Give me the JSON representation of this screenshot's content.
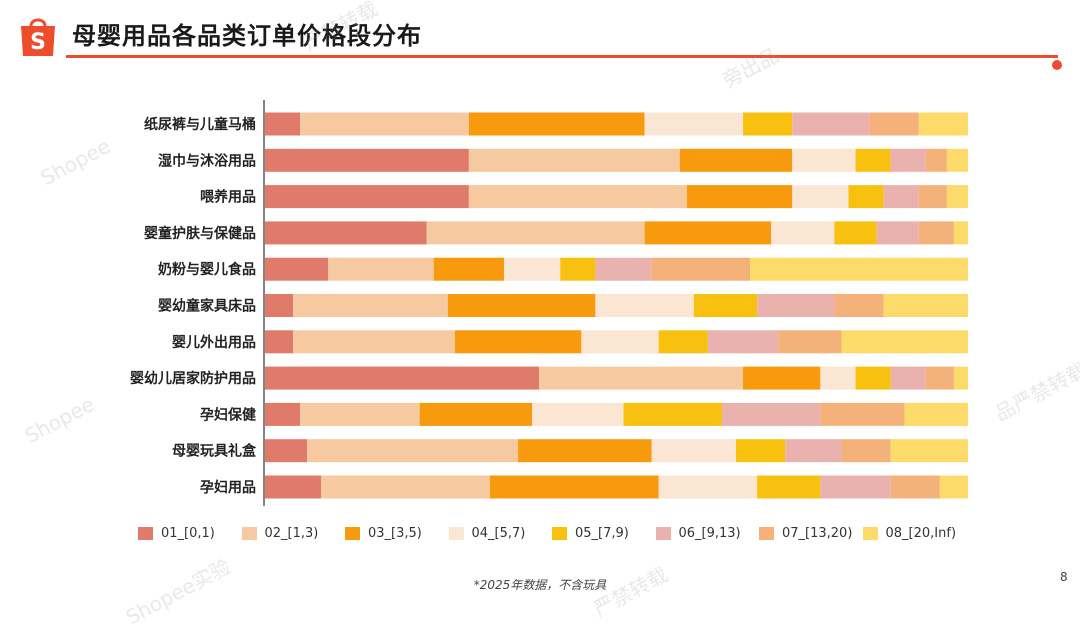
{
  "header": {
    "title": "母婴用品各品类订单价格段分布",
    "logo_icon": "shopee-bag-icon",
    "accent_color": "#ee4d2d"
  },
  "chart_data": {
    "type": "bar",
    "orientation": "horizontal",
    "stacked": true,
    "percent": true,
    "title": "母婴用品各品类订单价格段分布",
    "xlim": [
      0,
      100
    ],
    "ylabel": "",
    "xlabel": "",
    "legend_position": "bottom",
    "categories": [
      "纸尿裤与儿童马桶",
      "湿巾与沐浴用品",
      "喂养用品",
      "婴童护肤与保健品",
      "奶粉与婴儿食品",
      "婴幼童家具床品",
      "婴儿外出用品",
      "婴幼儿居家防护用品",
      "孕妇保健",
      "母婴玩具礼盒",
      "孕妇用品"
    ],
    "series": [
      {
        "name": "01_[0,1)",
        "color": "#e07a6a",
        "values": [
          5,
          29,
          29,
          23,
          9,
          4,
          4,
          39,
          5,
          6,
          8
        ]
      },
      {
        "name": "02_[1,3)",
        "color": "#f6c9a0",
        "values": [
          24,
          30,
          31,
          31,
          15,
          22,
          23,
          29,
          17,
          30,
          24
        ]
      },
      {
        "name": "03_[3,5)",
        "color": "#f79a0e",
        "values": [
          25,
          16,
          15,
          18,
          10,
          21,
          18,
          11,
          16,
          19,
          24
        ]
      },
      {
        "name": "04_[5,7)",
        "color": "#fbe6d3",
        "values": [
          14,
          9,
          8,
          9,
          8,
          14,
          11,
          5,
          13,
          12,
          14
        ]
      },
      {
        "name": "05_[7,9)",
        "color": "#f9c10f",
        "values": [
          7,
          5,
          5,
          6,
          5,
          9,
          7,
          5,
          14,
          7,
          9
        ]
      },
      {
        "name": "06_[9,13)",
        "color": "#e9b2ae",
        "values": [
          11,
          5,
          5,
          6,
          8,
          11,
          10,
          5,
          14,
          8,
          10
        ]
      },
      {
        "name": "07_[13,20)",
        "color": "#f4b27a",
        "values": [
          7,
          3,
          4,
          5,
          14,
          7,
          9,
          4,
          12,
          7,
          7
        ]
      },
      {
        "name": "08_[20,Inf)",
        "color": "#fcdb6a",
        "values": [
          7,
          3,
          3,
          2,
          31,
          12,
          18,
          2,
          9,
          11,
          4
        ]
      }
    ]
  },
  "footer": {
    "note": "*2025年数据，不含玩具",
    "page_number": "8"
  },
  "watermarks": [
    "Shopee",
    "Shopee实验",
    "品严禁转载",
    "严禁转载",
    "旁出品"
  ]
}
